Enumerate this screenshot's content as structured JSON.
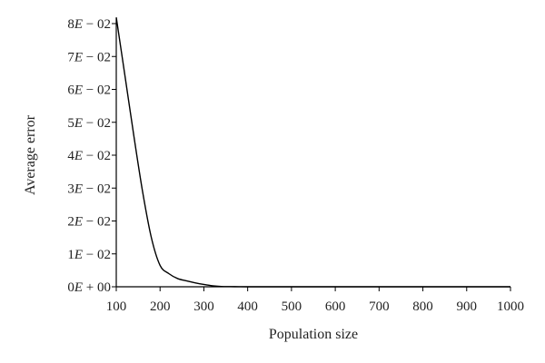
{
  "chart_data": {
    "type": "line",
    "title": "",
    "xlabel": "Population size",
    "ylabel": "Average error",
    "xlim": [
      100,
      1000
    ],
    "ylim": [
      0,
      0.08
    ],
    "grid": false,
    "x_ticks": [
      100,
      200,
      300,
      400,
      500,
      600,
      700,
      800,
      900,
      1000
    ],
    "x_tick_labels": [
      "100",
      "200",
      "300",
      "400",
      "500",
      "600",
      "700",
      "800",
      "900",
      "1000"
    ],
    "y_ticks": [
      0,
      0.01,
      0.02,
      0.03,
      0.04,
      0.05,
      0.06,
      0.07,
      0.08
    ],
    "y_tick_labels": [
      {
        "mant": "0",
        "exp": "+ 00"
      },
      {
        "mant": "1",
        "exp": "− 02"
      },
      {
        "mant": "2",
        "exp": "− 02"
      },
      {
        "mant": "3",
        "exp": "− 02"
      },
      {
        "mant": "4",
        "exp": "− 02"
      },
      {
        "mant": "5",
        "exp": "− 02"
      },
      {
        "mant": "6",
        "exp": "− 02"
      },
      {
        "mant": "7",
        "exp": "− 02"
      },
      {
        "mant": "8",
        "exp": "− 02"
      }
    ],
    "series": [
      {
        "x": [
          100,
          120,
          140,
          160,
          180,
          200,
          220,
          240,
          260,
          280,
          300,
          320,
          340,
          360,
          380,
          400,
          500,
          600,
          700,
          800,
          900,
          1000
        ],
        "y": [
          0.0819,
          0.064,
          0.046,
          0.029,
          0.015,
          0.0065,
          0.004,
          0.0025,
          0.0018,
          0.0012,
          0.0007,
          0.0003,
          0.0001,
          5e-05,
          2e-05,
          0.0,
          0.0,
          0.0,
          0.0,
          0.0,
          0.0,
          0.0
        ]
      }
    ]
  }
}
